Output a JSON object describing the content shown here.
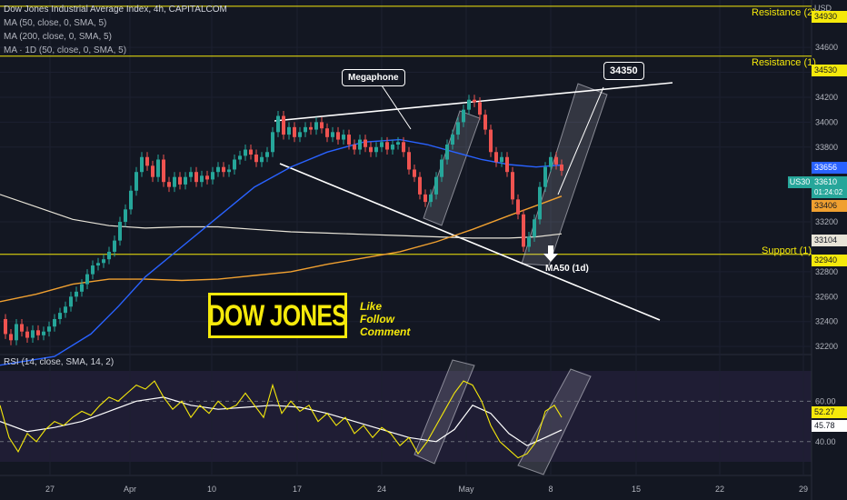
{
  "legend": {
    "title": "Dow Jones Industrial Average Index, 4h, CAPITALCOM",
    "ma1": "MA (50, close, 0, SMA, 5)",
    "ma2": "MA (200, close, 0, SMA, 5)",
    "ma3": "MA · 1D (50, close, 0, SMA, 5)",
    "rsi": "RSI (14, close, SMA, 14, 2)"
  },
  "colors": {
    "background": "#131722",
    "up": "#26a69a",
    "down": "#ef5350",
    "ma50": "#2962ff",
    "ma200": "#f0a030",
    "ma1d": "#e8e4d8",
    "level": "#f5e90b",
    "rsi": "#f5e90b",
    "rsi_ma": "#ffffff"
  },
  "annotations": {
    "megaphone": "Megaphone",
    "target": "34350",
    "ma50_1d": "MA50 (1d)",
    "resistance2": "Resistance (2)",
    "resistance1": "Resistance (1)",
    "support1": "Support (1)",
    "brand": "DOW JONES",
    "cta": [
      "Like",
      "Follow",
      "Comment"
    ]
  },
  "price_tags": {
    "currency": "USD",
    "resistance2": "34930",
    "resistance1": "34530",
    "ma50": "33656",
    "symbol": "US30",
    "last": "33610",
    "countdown": "01:24:02",
    "ma200": "33406",
    "ma1d": "33104",
    "support1": "32940",
    "rsi": "52.27",
    "rsi_ma": "45.78"
  },
  "chart_data": {
    "type": "line",
    "title": "Dow Jones Industrial Average Index, 4h, CAPITALCOM",
    "x_ticks": [
      "27",
      "Apr",
      "10",
      "17",
      "24",
      "May",
      "8",
      "15",
      "22",
      "29"
    ],
    "y_ticks": [
      34600,
      34400,
      34200,
      34000,
      33800,
      33200,
      32800,
      32600,
      32400,
      32200
    ],
    "y_tick_labels": [
      "34600",
      "34400",
      "34200",
      "34000",
      "33800",
      "33200",
      "32800",
      "32600",
      "32400",
      "32200"
    ],
    "ylim": [
      32150,
      34980
    ],
    "levels": [
      {
        "name": "Resistance (2)",
        "value": 34930
      },
      {
        "name": "Resistance (1)",
        "value": 34530
      },
      {
        "name": "Support (1)",
        "value": 32940
      }
    ],
    "close_path": [
      [
        0,
        32420
      ],
      [
        6,
        32300
      ],
      [
        12,
        32250
      ],
      [
        18,
        32380
      ],
      [
        24,
        32320
      ],
      [
        30,
        32270
      ],
      [
        36,
        32330
      ],
      [
        42,
        32290
      ],
      [
        48,
        32320
      ],
      [
        54,
        32360
      ],
      [
        60,
        32420
      ],
      [
        66,
        32470
      ],
      [
        72,
        32520
      ],
      [
        78,
        32600
      ],
      [
        84,
        32640
      ],
      [
        90,
        32700
      ],
      [
        96,
        32780
      ],
      [
        102,
        32850
      ],
      [
        108,
        32870
      ],
      [
        114,
        32900
      ],
      [
        120,
        32960
      ],
      [
        126,
        33050
      ],
      [
        132,
        33200
      ],
      [
        138,
        33300
      ],
      [
        144,
        33450
      ],
      [
        150,
        33600
      ],
      [
        156,
        33720
      ],
      [
        162,
        33650
      ],
      [
        168,
        33560
      ],
      [
        174,
        33700
      ],
      [
        180,
        33520
      ],
      [
        186,
        33480
      ],
      [
        192,
        33560
      ],
      [
        198,
        33500
      ],
      [
        204,
        33560
      ],
      [
        210,
        33600
      ],
      [
        216,
        33520
      ],
      [
        222,
        33570
      ],
      [
        228,
        33540
      ],
      [
        234,
        33600
      ],
      [
        240,
        33640
      ],
      [
        246,
        33600
      ],
      [
        252,
        33620
      ],
      [
        258,
        33700
      ],
      [
        264,
        33730
      ],
      [
        270,
        33780
      ],
      [
        276,
        33740
      ],
      [
        282,
        33680
      ],
      [
        288,
        33720
      ],
      [
        294,
        33760
      ],
      [
        300,
        33920
      ],
      [
        306,
        34050
      ],
      [
        312,
        33900
      ],
      [
        318,
        33960
      ],
      [
        324,
        33880
      ],
      [
        330,
        33920
      ],
      [
        336,
        33960
      ],
      [
        342,
        33940
      ],
      [
        348,
        34000
      ],
      [
        354,
        33950
      ],
      [
        360,
        33880
      ],
      [
        366,
        33920
      ],
      [
        372,
        33860
      ],
      [
        378,
        33900
      ],
      [
        384,
        33820
      ],
      [
        390,
        33780
      ],
      [
        396,
        33860
      ],
      [
        402,
        33800
      ],
      [
        408,
        33760
      ],
      [
        414,
        33800
      ],
      [
        420,
        33840
      ],
      [
        426,
        33780
      ],
      [
        432,
        33820
      ],
      [
        438,
        33840
      ],
      [
        444,
        33760
      ],
      [
        450,
        33620
      ],
      [
        456,
        33560
      ],
      [
        462,
        33420
      ],
      [
        468,
        33360
      ],
      [
        474,
        33420
      ],
      [
        480,
        33560
      ],
      [
        486,
        33700
      ],
      [
        492,
        33820
      ],
      [
        498,
        33900
      ],
      [
        504,
        34000
      ],
      [
        510,
        34100
      ],
      [
        516,
        34180
      ],
      [
        522,
        34160
      ],
      [
        528,
        34060
      ],
      [
        534,
        33940
      ],
      [
        540,
        33760
      ],
      [
        546,
        33680
      ],
      [
        552,
        33720
      ],
      [
        558,
        33600
      ],
      [
        564,
        33380
      ],
      [
        570,
        33260
      ],
      [
        576,
        33000
      ],
      [
        582,
        33080
      ],
      [
        588,
        33220
      ],
      [
        594,
        33480
      ],
      [
        600,
        33640
      ],
      [
        606,
        33720
      ],
      [
        612,
        33660
      ],
      [
        618,
        33610
      ]
    ],
    "ma50": [
      [
        0,
        32050
      ],
      [
        60,
        32120
      ],
      [
        100,
        32300
      ],
      [
        130,
        32520
      ],
      [
        160,
        32760
      ],
      [
        200,
        33000
      ],
      [
        240,
        33240
      ],
      [
        280,
        33480
      ],
      [
        320,
        33640
      ],
      [
        360,
        33760
      ],
      [
        400,
        33840
      ],
      [
        440,
        33860
      ],
      [
        470,
        33820
      ],
      [
        500,
        33760
      ],
      [
        530,
        33700
      ],
      [
        560,
        33660
      ],
      [
        590,
        33640
      ],
      [
        618,
        33656
      ]
    ],
    "ma200": [
      [
        0,
        32560
      ],
      [
        40,
        32620
      ],
      [
        80,
        32700
      ],
      [
        120,
        32740
      ],
      [
        160,
        32740
      ],
      [
        200,
        32730
      ],
      [
        240,
        32740
      ],
      [
        280,
        32770
      ],
      [
        320,
        32800
      ],
      [
        360,
        32860
      ],
      [
        400,
        32910
      ],
      [
        440,
        32960
      ],
      [
        480,
        33040
      ],
      [
        520,
        33140
      ],
      [
        560,
        33250
      ],
      [
        590,
        33330
      ],
      [
        618,
        33406
      ]
    ],
    "ma1d": [
      [
        0,
        33420
      ],
      [
        40,
        33320
      ],
      [
        80,
        33220
      ],
      [
        120,
        33170
      ],
      [
        160,
        33150
      ],
      [
        200,
        33160
      ],
      [
        240,
        33160
      ],
      [
        280,
        33140
      ],
      [
        320,
        33120
      ],
      [
        360,
        33110
      ],
      [
        400,
        33100
      ],
      [
        440,
        33090
      ],
      [
        480,
        33080
      ],
      [
        520,
        33070
      ],
      [
        560,
        33070
      ],
      [
        590,
        33080
      ],
      [
        618,
        33104
      ]
    ],
    "rsi": {
      "name": "RSI (14, close, SMA, 14, 2)",
      "levels": [
        60.0,
        40.0
      ],
      "ylim": [
        30,
        75
      ],
      "values": [
        [
          0,
          58
        ],
        [
          10,
          42
        ],
        [
          20,
          35
        ],
        [
          30,
          44
        ],
        [
          40,
          40
        ],
        [
          50,
          46
        ],
        [
          60,
          50
        ],
        [
          70,
          48
        ],
        [
          80,
          52
        ],
        [
          90,
          55
        ],
        [
          100,
          53
        ],
        [
          110,
          58
        ],
        [
          120,
          62
        ],
        [
          130,
          60
        ],
        [
          140,
          64
        ],
        [
          150,
          68
        ],
        [
          160,
          66
        ],
        [
          170,
          70
        ],
        [
          180,
          62
        ],
        [
          190,
          56
        ],
        [
          200,
          60
        ],
        [
          210,
          52
        ],
        [
          220,
          58
        ],
        [
          230,
          54
        ],
        [
          240,
          60
        ],
        [
          250,
          56
        ],
        [
          260,
          58
        ],
        [
          270,
          64
        ],
        [
          280,
          58
        ],
        [
          290,
          52
        ],
        [
          300,
          68
        ],
        [
          310,
          54
        ],
        [
          320,
          60
        ],
        [
          330,
          55
        ],
        [
          340,
          58
        ],
        [
          350,
          50
        ],
        [
          360,
          54
        ],
        [
          370,
          48
        ],
        [
          380,
          52
        ],
        [
          390,
          44
        ],
        [
          400,
          48
        ],
        [
          410,
          42
        ],
        [
          420,
          47
        ],
        [
          430,
          44
        ],
        [
          440,
          38
        ],
        [
          450,
          42
        ],
        [
          460,
          34
        ],
        [
          470,
          40
        ],
        [
          480,
          48
        ],
        [
          490,
          56
        ],
        [
          500,
          64
        ],
        [
          510,
          70
        ],
        [
          520,
          68
        ],
        [
          530,
          60
        ],
        [
          540,
          48
        ],
        [
          550,
          40
        ],
        [
          560,
          36
        ],
        [
          570,
          32
        ],
        [
          580,
          34
        ],
        [
          590,
          40
        ],
        [
          600,
          55
        ],
        [
          610,
          58
        ],
        [
          618,
          52
        ]
      ],
      "ma": [
        [
          0,
          50
        ],
        [
          30,
          45
        ],
        [
          60,
          47
        ],
        [
          90,
          50
        ],
        [
          120,
          55
        ],
        [
          150,
          60
        ],
        [
          180,
          62
        ],
        [
          210,
          58
        ],
        [
          240,
          56
        ],
        [
          270,
          57
        ],
        [
          300,
          58
        ],
        [
          330,
          57
        ],
        [
          360,
          54
        ],
        [
          390,
          50
        ],
        [
          420,
          46
        ],
        [
          450,
          42
        ],
        [
          480,
          40
        ],
        [
          500,
          46
        ],
        [
          520,
          58
        ],
        [
          540,
          54
        ],
        [
          560,
          44
        ],
        [
          580,
          38
        ],
        [
          600,
          42
        ],
        [
          618,
          45.78
        ]
      ]
    }
  }
}
